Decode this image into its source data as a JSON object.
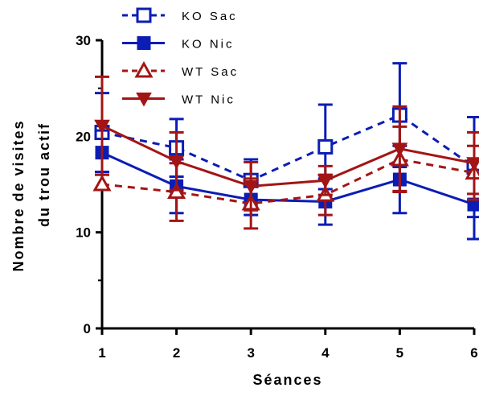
{
  "chart_data": {
    "type": "line",
    "title": "",
    "xlabel": "Séances",
    "ylabel_lines": [
      "Nombre de visites",
      "du trou actif"
    ],
    "x": [
      1,
      2,
      3,
      4,
      5,
      6
    ],
    "x_tick_labels": [
      "1",
      "2",
      "3",
      "4",
      "5",
      "6"
    ],
    "xlim": [
      1,
      6
    ],
    "ylim": [
      0,
      30
    ],
    "y_ticks": [
      0,
      10,
      20,
      30
    ],
    "y_tick_labels": [
      "0",
      "10",
      "20",
      "30"
    ],
    "grid": false,
    "legend_position": "top-left",
    "series": [
      {
        "name": "KO Sac",
        "color": "#0b1db5",
        "line_style": "dashed",
        "marker": "open-square",
        "values": [
          20.4,
          18.8,
          15.4,
          18.9,
          22.2,
          16.8
        ],
        "error": [
          4.1,
          3.0,
          2.2,
          4.4,
          5.4,
          5.2
        ]
      },
      {
        "name": "KO Nic",
        "color": "#0b1db5",
        "line_style": "solid",
        "marker": "filled-square",
        "values": [
          18.3,
          14.8,
          13.4,
          13.2,
          15.5,
          12.9
        ],
        "error": [
          2.3,
          2.8,
          1.6,
          2.4,
          3.5,
          3.6
        ]
      },
      {
        "name": "WT Sac",
        "color": "#a31515",
        "line_style": "dashed",
        "marker": "open-triangle-up",
        "values": [
          15.0,
          14.2,
          13.0,
          13.9,
          17.6,
          16.2
        ],
        "error": [
          0,
          3.0,
          2.6,
          2.1,
          3.4,
          2.8
        ]
      },
      {
        "name": "WT Nic",
        "color": "#a31515",
        "line_style": "solid",
        "marker": "filled-triangle-down",
        "values": [
          21.1,
          17.4,
          14.8,
          15.4,
          18.7,
          17.2
        ],
        "error": [
          5.1,
          3.0,
          2.5,
          1.5,
          4.4,
          3.2
        ]
      }
    ]
  }
}
